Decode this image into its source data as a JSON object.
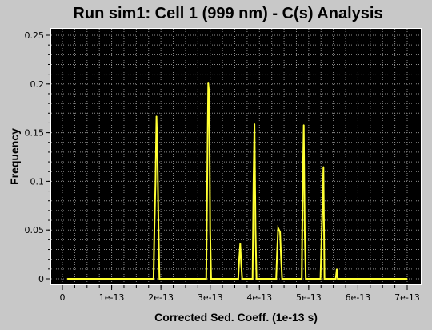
{
  "window": {
    "title": "Run sim1: Cell 1 (999 nm) - C(s) Analysis"
  },
  "colors": {
    "background": "#c8c8c8",
    "plot_background": "#000000",
    "grid": "#8c8c8c",
    "series": "#ffff33",
    "frame": "#ffffff"
  },
  "chart_data": {
    "type": "line",
    "title": "Run sim1: Cell 1 (999 nm) - C(s) Analysis",
    "xlabel": "Corrected Sed. Coeff. (1e-13 s)",
    "ylabel": "Frequency",
    "xlim": [
      0,
      7e-13
    ],
    "ylim": [
      0,
      0.25
    ],
    "grid": true,
    "x_ticks": [
      {
        "value": 0,
        "label": "0"
      },
      {
        "value": 1e-13,
        "label": "1e-13"
      },
      {
        "value": 2e-13,
        "label": "2e-13"
      },
      {
        "value": 3e-13,
        "label": "3e-13"
      },
      {
        "value": 4e-13,
        "label": "4e-13"
      },
      {
        "value": 5e-13,
        "label": "5e-13"
      },
      {
        "value": 6e-13,
        "label": "6e-13"
      },
      {
        "value": 7e-13,
        "label": "7e-13"
      }
    ],
    "y_ticks": [
      {
        "value": 0,
        "label": "0"
      },
      {
        "value": 0.05,
        "label": "0.05"
      },
      {
        "value": 0.1,
        "label": "0.1"
      },
      {
        "value": 0.15,
        "label": "0.15"
      },
      {
        "value": 0.2,
        "label": "0.2"
      },
      {
        "value": 0.25,
        "label": "0.25"
      }
    ],
    "series": [
      {
        "x": [
          1e-14,
          1.85e-13,
          1.87e-13,
          1.89e-13,
          1.91e-13,
          1.93e-13,
          1.95e-13,
          1.97e-13,
          2.92e-13,
          2.94e-13,
          2.96e-13,
          2.98e-13,
          3e-13,
          3.02e-13,
          3.57e-13,
          3.59e-13,
          3.61e-13,
          3.63e-13,
          3.65e-13,
          3.86e-13,
          3.88e-13,
          3.9e-13,
          3.92e-13,
          3.94e-13,
          4.34e-13,
          4.36e-13,
          4.38e-13,
          4.4e-13,
          4.42e-13,
          4.44e-13,
          4.46e-13,
          4.86e-13,
          4.88e-13,
          4.9e-13,
          4.92e-13,
          4.94e-13,
          5.24e-13,
          5.26e-13,
          5.28e-13,
          5.3e-13,
          5.32e-13,
          5.55e-13,
          5.57e-13,
          5.59e-13,
          7e-13
        ],
        "y": [
          0,
          0,
          0.055,
          0.1,
          0.167,
          0.13,
          0.055,
          0,
          0,
          0.1,
          0.201,
          0.19,
          0.05,
          0,
          0,
          0.02,
          0.036,
          0.015,
          0,
          0,
          0.1,
          0.159,
          0.05,
          0,
          0,
          0.03,
          0.052,
          0.05,
          0.048,
          0.02,
          0,
          0,
          0.1,
          0.158,
          0.05,
          0,
          0,
          0.04,
          0.075,
          0.115,
          0,
          0,
          0.01,
          0,
          0
        ]
      }
    ]
  }
}
